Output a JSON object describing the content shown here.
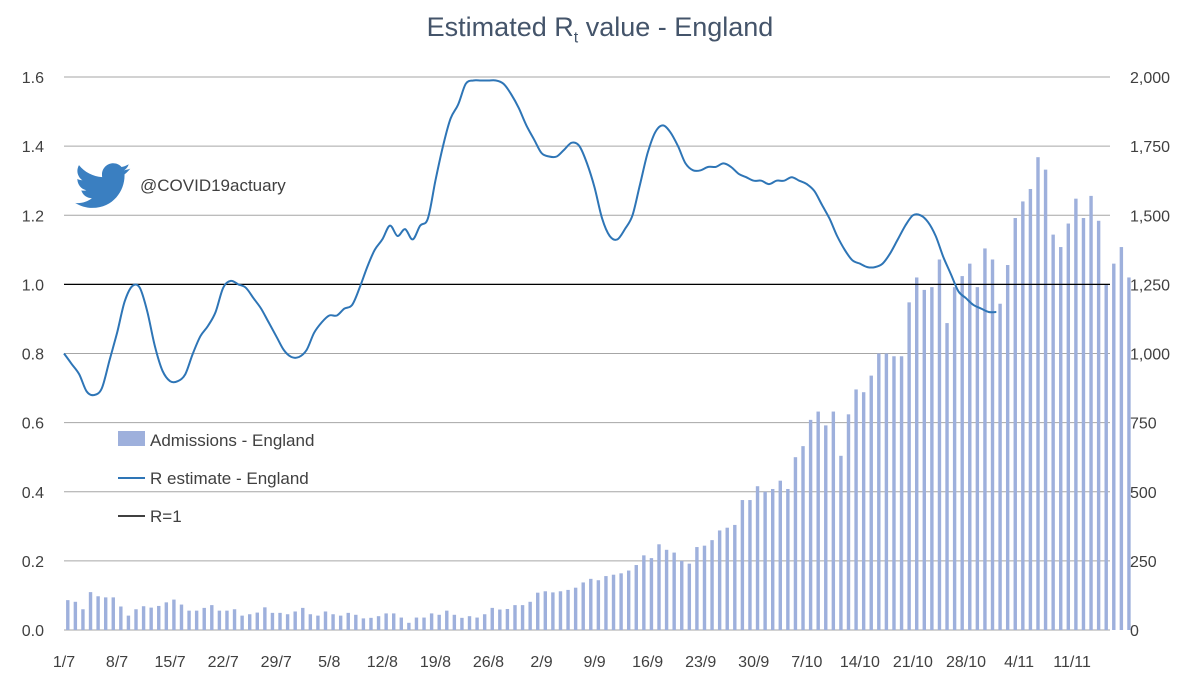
{
  "chart_data": {
    "type": "bar+line",
    "title": "Estimated R",
    "title_subscript": "t",
    "title_suffix": " value - England",
    "handle": "@COVID19actuary",
    "twitter_icon": "twitter-bird-icon",
    "colors": {
      "bars": "#9eb0dc",
      "r_line": "#2e75b6",
      "r1_line": "#000000",
      "grid": "#a6a6a6"
    },
    "y_left": {
      "min": 0,
      "max": 1.6,
      "ticks": [
        "0.0",
        "0.2",
        "0.4",
        "0.6",
        "0.8",
        "1.0",
        "1.2",
        "1.4",
        "1.6"
      ]
    },
    "y_right": {
      "min": 0,
      "max": 2000,
      "ticks": [
        "0",
        "250",
        "500",
        "750",
        "1,000",
        "1,250",
        "1,500",
        "1,750",
        "2,000"
      ]
    },
    "x_ticks": [
      {
        "label": "1/7",
        "day": 0
      },
      {
        "label": "8/7",
        "day": 7
      },
      {
        "label": "15/7",
        "day": 14
      },
      {
        "label": "22/7",
        "day": 21
      },
      {
        "label": "29/7",
        "day": 28
      },
      {
        "label": "5/8",
        "day": 35
      },
      {
        "label": "12/8",
        "day": 42
      },
      {
        "label": "19/8",
        "day": 49
      },
      {
        "label": "26/8",
        "day": 56
      },
      {
        "label": "2/9",
        "day": 63
      },
      {
        "label": "9/9",
        "day": 70
      },
      {
        "label": "16/9",
        "day": 77
      },
      {
        "label": "23/9",
        "day": 84
      },
      {
        "label": "30/9",
        "day": 91
      },
      {
        "label": "7/10",
        "day": 98
      },
      {
        "label": "14/10",
        "day": 105
      },
      {
        "label": "21/10",
        "day": 112
      },
      {
        "label": "28/10",
        "day": 119
      },
      {
        "label": "4/11",
        "day": 126
      },
      {
        "label": "11/11",
        "day": 133
      }
    ],
    "days_total": 138,
    "series": [
      {
        "name": "Admissions - England",
        "type": "bar",
        "axis": "right",
        "values": [
          108,
          102,
          75,
          137,
          122,
          118,
          118,
          85,
          52,
          75,
          86,
          81,
          87,
          100,
          110,
          92,
          70,
          70,
          80,
          90,
          70,
          70,
          75,
          52,
          57,
          63,
          82,
          62,
          62,
          57,
          67,
          80,
          57,
          52,
          67,
          57,
          52,
          62,
          55,
          42,
          44,
          50,
          60,
          60,
          45,
          26,
          45,
          45,
          60,
          55,
          70,
          55,
          44,
          50,
          45,
          57,
          80,
          74,
          76,
          90,
          90,
          102,
          135,
          140,
          136,
          140,
          145,
          153,
          172,
          185,
          180,
          195,
          200,
          205,
          215,
          235,
          270,
          260,
          310,
          290,
          280,
          250,
          240,
          300,
          305,
          325,
          360,
          370,
          380,
          470,
          470,
          520,
          500,
          510,
          540,
          510,
          625,
          665,
          760,
          790,
          740,
          790,
          630,
          780,
          870,
          860,
          920,
          1000,
          1000,
          990,
          990,
          1185,
          1275,
          1230,
          1240,
          1340,
          1110,
          1240,
          1280,
          1325,
          1240,
          1380,
          1340,
          1180,
          1320,
          1490,
          1550,
          1595,
          1710,
          1665,
          1430,
          1385,
          1470,
          1560,
          1490,
          1570,
          1480,
          1250,
          1325,
          1385,
          1275
        ]
      },
      {
        "name": "R estimate - England",
        "type": "line",
        "axis": "left",
        "values": [
          0.8,
          0.77,
          0.74,
          0.69,
          0.68,
          0.7,
          0.78,
          0.86,
          0.95,
          0.995,
          0.99,
          0.92,
          0.82,
          0.75,
          0.72,
          0.72,
          0.74,
          0.8,
          0.85,
          0.88,
          0.92,
          0.99,
          1.01,
          1.0,
          0.99,
          0.96,
          0.93,
          0.89,
          0.85,
          0.81,
          0.79,
          0.79,
          0.81,
          0.86,
          0.89,
          0.91,
          0.91,
          0.93,
          0.94,
          0.99,
          1.05,
          1.1,
          1.13,
          1.17,
          1.14,
          1.16,
          1.13,
          1.17,
          1.19,
          1.3,
          1.4,
          1.48,
          1.52,
          1.58,
          1.59,
          1.59,
          1.59,
          1.59,
          1.58,
          1.55,
          1.51,
          1.46,
          1.42,
          1.38,
          1.37,
          1.37,
          1.39,
          1.41,
          1.4,
          1.35,
          1.28,
          1.19,
          1.14,
          1.13,
          1.16,
          1.2,
          1.29,
          1.38,
          1.44,
          1.46,
          1.44,
          1.4,
          1.35,
          1.33,
          1.33,
          1.34,
          1.34,
          1.35,
          1.34,
          1.32,
          1.31,
          1.3,
          1.3,
          1.29,
          1.3,
          1.3,
          1.31,
          1.3,
          1.29,
          1.27,
          1.23,
          1.19,
          1.14,
          1.1,
          1.07,
          1.06,
          1.05,
          1.05,
          1.06,
          1.09,
          1.13,
          1.17,
          1.2,
          1.2,
          1.18,
          1.14,
          1.08,
          1.03,
          0.98,
          0.96,
          0.94,
          0.93,
          0.92,
          0.92
        ]
      },
      {
        "name": "R=1",
        "type": "line",
        "axis": "left",
        "values": [
          1.0
        ]
      }
    ],
    "legend": [
      "Admissions - England",
      "R estimate - England",
      "R=1"
    ],
    "legend_position": "lower-left"
  }
}
